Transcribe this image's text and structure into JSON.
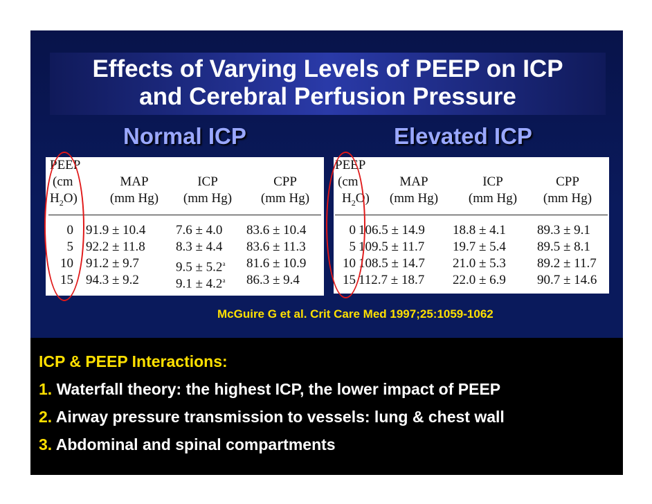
{
  "title": {
    "line1": "Effects of Varying Levels of PEEP on ICP",
    "line2": "and Cerebral Perfusion Pressure"
  },
  "sections": {
    "normal": "Normal ICP",
    "elevated": "Elevated ICP"
  },
  "table_normal": {
    "headers": {
      "peep_1": "PEEP",
      "peep_2": "(cm",
      "peep_3a": "H",
      "peep_3b": "2",
      "peep_3c": "O)",
      "map_1": "MAP",
      "map_2": "(mm Hg)",
      "icp_1": "ICP",
      "icp_2": "(mm Hg)",
      "cpp_1": "CPP",
      "cpp_2": "(mm Hg)"
    },
    "rows": [
      {
        "peep": "0",
        "map": "91.9 ± 10.4",
        "icp": "7.6 ± 4.0",
        "icp_sup": "",
        "cpp": "83.6 ± 10.4"
      },
      {
        "peep": "5",
        "map": "92.2 ± 11.8",
        "icp": "8.3 ± 4.4",
        "icp_sup": "",
        "cpp": "83.6 ± 11.3"
      },
      {
        "peep": "10",
        "map": "91.2 ± 9.7",
        "icp": "9.5 ± 5.2",
        "icp_sup": "a",
        "cpp": "81.6 ± 10.9"
      },
      {
        "peep": "15",
        "map": "94.3 ± 9.2",
        "icp": "9.1 ± 4.2",
        "icp_sup": "a",
        "cpp": "86.3 ± 9.4"
      }
    ]
  },
  "table_elevated": {
    "headers": {
      "peep_1": "PEEP",
      "peep_2": "(cm",
      "peep_3a": "H",
      "peep_3b": "2",
      "peep_3c": "O)",
      "map_1": "MAP",
      "map_2": "(mm Hg)",
      "icp_1": "ICP",
      "icp_2": "(mm Hg)",
      "cpp_1": "CPP",
      "cpp_2": "(mm Hg)"
    },
    "rows": [
      {
        "peep": "0",
        "map": "106.5 ± 14.9",
        "icp": "18.8 ± 4.1",
        "cpp": "89.3 ± 9.1"
      },
      {
        "peep": "5",
        "map": "109.5 ± 11.7",
        "icp": "19.7 ± 5.4",
        "cpp": "89.5 ± 8.1"
      },
      {
        "peep": "10",
        "map": "108.5 ± 14.7",
        "icp": "21.0 ± 5.3",
        "cpp": "89.2 ± 11.7"
      },
      {
        "peep": "15",
        "map": "112.7 ± 18.7",
        "icp": "22.0 ± 6.9",
        "cpp": "90.7 ± 14.6"
      }
    ]
  },
  "citation": "McGuire G et al. Crit Care Med 1997;25:1059-1062",
  "interactions": {
    "heading": "ICP & PEEP Interactions:",
    "items": [
      {
        "num": "1.",
        "text": "Waterfall theory: the highest ICP, the lower impact of PEEP"
      },
      {
        "num": "2.",
        "text": "Airway pressure transmission to vessels: lung & chest wall"
      },
      {
        "num": "3.",
        "text": "Abdominal and spinal compartments"
      }
    ]
  },
  "colors": {
    "background": "#0a1a5c",
    "subheading": "#9aa8ff",
    "accent": "#ffe000",
    "oval": "#e01818"
  }
}
